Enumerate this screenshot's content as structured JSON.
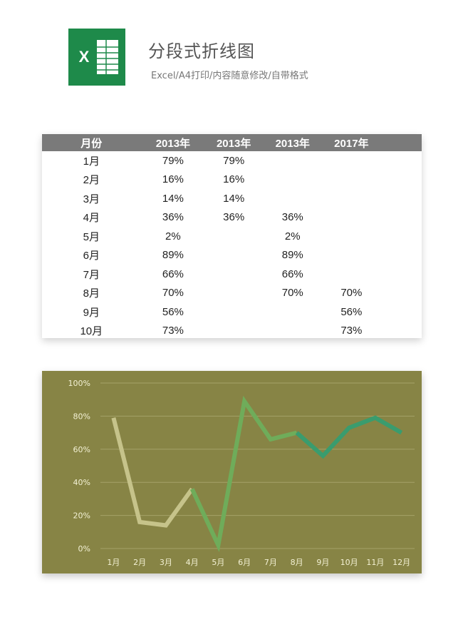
{
  "header": {
    "title": "分段式折线图",
    "subtitle": "Excel/A4打印/内容随意修改/自带格式",
    "logo_letter": "X",
    "logo_color": "#1e8a4a"
  },
  "table": {
    "headers": [
      "月份",
      "2013年",
      "2013年",
      "2013年",
      "2017年"
    ],
    "rows": [
      [
        "1月",
        "79%",
        "79%",
        "",
        ""
      ],
      [
        "2月",
        "16%",
        "16%",
        "",
        ""
      ],
      [
        "3月",
        "14%",
        "14%",
        "",
        ""
      ],
      [
        "4月",
        "36%",
        "36%",
        "36%",
        ""
      ],
      [
        "5月",
        "2%",
        "",
        "2%",
        ""
      ],
      [
        "6月",
        "89%",
        "",
        "89%",
        ""
      ],
      [
        "7月",
        "66%",
        "",
        "66%",
        ""
      ],
      [
        "8月",
        "70%",
        "",
        "70%",
        "70%"
      ],
      [
        "9月",
        "56%",
        "",
        "",
        "56%"
      ],
      [
        "10月",
        "73%",
        "",
        "",
        "73%"
      ]
    ]
  },
  "chart_data": {
    "type": "line",
    "title": "",
    "xlabel": "",
    "ylabel": "",
    "categories": [
      "1月",
      "2月",
      "3月",
      "4月",
      "5月",
      "6月",
      "7月",
      "8月",
      "9月",
      "10月",
      "11月",
      "12月"
    ],
    "ylim": [
      0,
      100
    ],
    "yticks": [
      "0%",
      "20%",
      "40%",
      "60%",
      "80%",
      "100%"
    ],
    "grid": true,
    "background": "#878445",
    "series": [
      {
        "color": "#c6c38a",
        "values": [
          79,
          16,
          14,
          36,
          null,
          null,
          null,
          null,
          null,
          null,
          null,
          null
        ]
      },
      {
        "color": "#6fac5a",
        "values": [
          null,
          null,
          null,
          36,
          2,
          89,
          66,
          70,
          null,
          null,
          null,
          null
        ]
      },
      {
        "color": "#3a9c6e",
        "values": [
          null,
          null,
          null,
          null,
          null,
          null,
          null,
          70,
          56,
          73,
          79,
          70
        ]
      }
    ]
  }
}
